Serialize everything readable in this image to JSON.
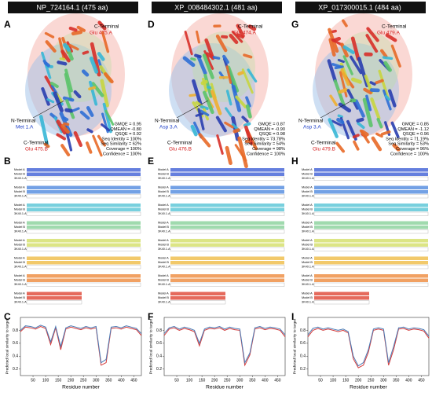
{
  "panels": [
    {
      "header": "NP_724164.1 (475 aa)",
      "structure_letter": "A",
      "c_terminal_top": {
        "label": "C-Terminal",
        "residue": "Glu 475.A"
      },
      "n_terminal": {
        "label": "N-Terminal",
        "residue": "Met 1.A"
      },
      "c_terminal_bottom": {
        "label": "C-Terminal",
        "residue": "Glu 475.B"
      },
      "metrics": [
        "GMQE = 0.95",
        "QMEAN = -0.80",
        "QSQE = 0.92",
        "Seq Identity = 100%",
        "Seq Similarity = 62%",
        "Coverage = 100%",
        "Confidence = 100%"
      ],
      "alignment_letter": "B",
      "alignment_rows": [
        "Model A",
        "Model B",
        "3K40.1.A"
      ],
      "plot_letter": "C",
      "plot": {
        "type": "line",
        "xlabel": "Residue number",
        "ylabel": "Predicted local similarity to target",
        "xlim": [
          0,
          480
        ],
        "ylim": [
          0.1,
          1.0
        ],
        "xticks": [
          50,
          100,
          150,
          200,
          250,
          300,
          350,
          400,
          450
        ],
        "yticks": [
          0.2,
          0.4,
          0.6,
          0.8
        ],
        "x": [
          0,
          20,
          40,
          60,
          80,
          100,
          120,
          140,
          160,
          180,
          200,
          220,
          240,
          260,
          280,
          300,
          320,
          340,
          360,
          380,
          400,
          420,
          440,
          460,
          480
        ],
        "series": [
          {
            "color": "#d43a3a",
            "values": [
              0.78,
              0.85,
              0.84,
              0.82,
              0.86,
              0.83,
              0.58,
              0.84,
              0.5,
              0.82,
              0.85,
              0.83,
              0.81,
              0.84,
              0.82,
              0.84,
              0.26,
              0.3,
              0.83,
              0.84,
              0.82,
              0.85,
              0.83,
              0.81,
              0.72
            ]
          },
          {
            "color": "#4a7ab5",
            "values": [
              0.8,
              0.87,
              0.86,
              0.84,
              0.88,
              0.85,
              0.62,
              0.86,
              0.55,
              0.84,
              0.87,
              0.85,
              0.83,
              0.86,
              0.84,
              0.86,
              0.3,
              0.35,
              0.85,
              0.86,
              0.84,
              0.87,
              0.85,
              0.83,
              0.75
            ]
          }
        ]
      }
    },
    {
      "header": "XP_008484302.1 (481 aa)",
      "structure_letter": "D",
      "c_terminal_top": {
        "label": "C-Terminal",
        "residue": "Glu 474.A"
      },
      "n_terminal": {
        "label": "N-Terminal",
        "residue": "Asp 3.A"
      },
      "c_terminal_bottom": {
        "label": "C-Terminal",
        "residue": "Glu 476.B"
      },
      "metrics": [
        "GMQE = 0.87",
        "QMEAN = -0.90",
        "QSQE = 0.98",
        "Seq Identity = 73.78%",
        "Seq Similarity = 54%",
        "Coverage = 98%",
        "Confidence = 100%"
      ],
      "alignment_letter": "E",
      "alignment_rows": [
        "Model A",
        "Model B",
        "3K40.1.A"
      ],
      "plot_letter": "F",
      "plot": {
        "type": "line",
        "xlabel": "Residue number",
        "ylabel": "Predicted local similarity to target",
        "xlim": [
          0,
          480
        ],
        "ylim": [
          0.1,
          1.0
        ],
        "xticks": [
          50,
          100,
          150,
          200,
          250,
          300,
          350,
          400,
          450
        ],
        "yticks": [
          0.2,
          0.4,
          0.6,
          0.8
        ],
        "x": [
          0,
          20,
          40,
          60,
          80,
          100,
          120,
          140,
          160,
          180,
          200,
          220,
          240,
          260,
          280,
          300,
          320,
          340,
          360,
          380,
          400,
          420,
          440,
          460,
          480
        ],
        "series": [
          {
            "color": "#d43a3a",
            "values": [
              0.72,
              0.82,
              0.84,
              0.8,
              0.83,
              0.81,
              0.78,
              0.56,
              0.8,
              0.83,
              0.82,
              0.84,
              0.8,
              0.83,
              0.81,
              0.8,
              0.26,
              0.42,
              0.82,
              0.84,
              0.81,
              0.83,
              0.82,
              0.8,
              0.7
            ]
          },
          {
            "color": "#4a7ab5",
            "values": [
              0.75,
              0.84,
              0.86,
              0.82,
              0.85,
              0.83,
              0.8,
              0.6,
              0.82,
              0.85,
              0.84,
              0.86,
              0.82,
              0.85,
              0.83,
              0.82,
              0.3,
              0.45,
              0.84,
              0.86,
              0.83,
              0.85,
              0.84,
              0.82,
              0.73
            ]
          }
        ]
      }
    },
    {
      "header": "XP_017300015.1 (484 aa)",
      "structure_letter": "G",
      "c_terminal_top": {
        "label": "C-Terminal",
        "residue": "Glu 479.A"
      },
      "n_terminal": {
        "label": "N-Terminal",
        "residue": "Asp 3.A"
      },
      "c_terminal_bottom": {
        "label": "C-Terminal",
        "residue": "Glu 479.B"
      },
      "metrics": [
        "GMQE = 0.85",
        "QMEAN = -1.12",
        "QSQE = 0.96",
        "Seq Identity = 71.19%",
        "Seq Similarity = 53%",
        "Coverage = 96%",
        "Confidence = 100%"
      ],
      "alignment_letter": "H",
      "alignment_rows": [
        "Model A",
        "Model B",
        "3K40.1.A"
      ],
      "plot_letter": "I",
      "plot": {
        "type": "line",
        "xlabel": "Residue number",
        "ylabel": "Predicted local similarity to target",
        "xlim": [
          0,
          480
        ],
        "ylim": [
          0.1,
          1.0
        ],
        "xticks": [
          50,
          100,
          150,
          200,
          250,
          300,
          350,
          400,
          450
        ],
        "yticks": [
          0.2,
          0.4,
          0.6,
          0.8
        ],
        "x": [
          0,
          20,
          40,
          60,
          80,
          100,
          120,
          140,
          160,
          180,
          200,
          220,
          240,
          260,
          280,
          300,
          320,
          340,
          360,
          380,
          400,
          420,
          440,
          460,
          480
        ],
        "series": [
          {
            "color": "#d43a3a",
            "values": [
              0.7,
              0.8,
              0.83,
              0.8,
              0.82,
              0.8,
              0.78,
              0.8,
              0.76,
              0.36,
              0.22,
              0.26,
              0.46,
              0.8,
              0.82,
              0.8,
              0.26,
              0.5,
              0.82,
              0.83,
              0.8,
              0.82,
              0.81,
              0.79,
              0.68
            ]
          },
          {
            "color": "#4a7ab5",
            "values": [
              0.73,
              0.83,
              0.85,
              0.82,
              0.84,
              0.82,
              0.8,
              0.82,
              0.78,
              0.4,
              0.25,
              0.3,
              0.5,
              0.82,
              0.84,
              0.82,
              0.3,
              0.55,
              0.84,
              0.85,
              0.82,
              0.84,
              0.83,
              0.81,
              0.71
            ]
          }
        ]
      }
    }
  ]
}
